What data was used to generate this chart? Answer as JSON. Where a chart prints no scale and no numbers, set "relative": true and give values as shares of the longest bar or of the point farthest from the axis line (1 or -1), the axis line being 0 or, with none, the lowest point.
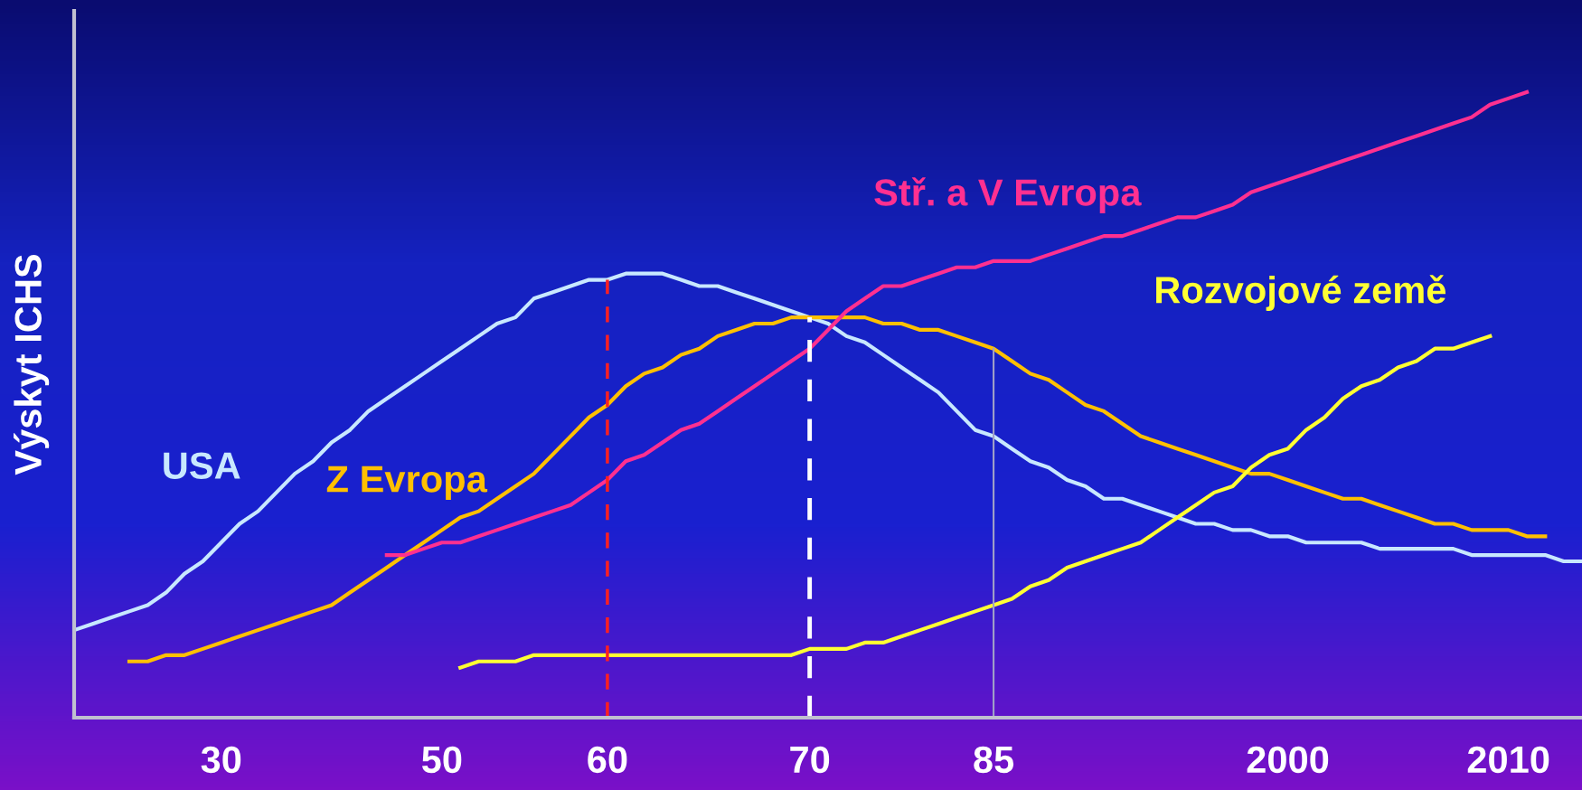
{
  "chart_data": {
    "type": "line",
    "relative": true,
    "ylabel": "Výskyt ICHS",
    "categories": [
      null,
      null,
      null,
      null,
      null,
      null,
      null,
      null,
      "30",
      null,
      null,
      null,
      null,
      null,
      null,
      null,
      null,
      null,
      null,
      null,
      "50",
      null,
      null,
      null,
      null,
      null,
      null,
      null,
      null,
      "60",
      null,
      null,
      null,
      null,
      null,
      null,
      null,
      null,
      null,
      null,
      "70",
      null,
      null,
      null,
      null,
      null,
      null,
      null,
      null,
      null,
      "85",
      null,
      null,
      null,
      null,
      null,
      null,
      null,
      null,
      null,
      null,
      null,
      null,
      null,
      null,
      null,
      "2000",
      null,
      null,
      null,
      null,
      null,
      null,
      null,
      null,
      null,
      null,
      null,
      "2010",
      null,
      null,
      null,
      null
    ],
    "grid": false,
    "legend": false,
    "marker": "none",
    "line_style": "solid",
    "series": [
      {
        "name": "USA",
        "color": "#c8e8ff",
        "values": [
          0.14,
          0.15,
          0.16,
          0.17,
          0.18,
          0.2,
          0.23,
          0.25,
          0.28,
          0.31,
          0.33,
          0.36,
          0.39,
          0.41,
          0.44,
          0.46,
          0.49,
          0.51,
          0.53,
          0.55,
          0.57,
          0.59,
          0.61,
          0.63,
          0.64,
          0.67,
          0.68,
          0.69,
          0.7,
          0.7,
          0.71,
          0.71,
          0.71,
          0.7,
          0.69,
          0.69,
          0.68,
          0.67,
          0.66,
          0.65,
          0.64,
          0.63,
          0.61,
          0.6,
          0.58,
          0.56,
          0.54,
          0.52,
          0.49,
          0.46,
          0.45,
          0.43,
          0.41,
          0.4,
          0.38,
          0.37,
          0.35,
          0.35,
          0.34,
          0.33,
          0.32,
          0.31,
          0.31,
          0.3,
          0.3,
          0.29,
          0.29,
          0.28,
          0.28,
          0.28,
          0.28,
          0.27,
          0.27,
          0.27,
          0.27,
          0.27,
          0.26,
          0.26,
          0.26,
          0.26,
          0.26,
          0.25,
          0.25
        ]
      },
      {
        "name": "Z Evropa",
        "color": "#ffc000",
        "values": [
          null,
          null,
          null,
          0.09,
          0.09,
          0.1,
          0.1,
          0.11,
          0.12,
          0.13,
          0.14,
          0.15,
          0.16,
          0.17,
          0.18,
          0.2,
          0.22,
          0.24,
          0.26,
          0.28,
          0.3,
          0.32,
          0.33,
          0.35,
          0.37,
          0.39,
          0.42,
          0.45,
          0.48,
          0.5,
          0.53,
          0.55,
          0.56,
          0.58,
          0.59,
          0.61,
          0.62,
          0.63,
          0.63,
          0.64,
          0.64,
          0.64,
          0.64,
          0.64,
          0.63,
          0.63,
          0.62,
          0.62,
          0.61,
          0.6,
          0.59,
          0.57,
          0.55,
          0.54,
          0.52,
          0.5,
          0.49,
          0.47,
          0.45,
          0.44,
          0.43,
          0.42,
          0.41,
          0.4,
          0.39,
          0.39,
          0.38,
          0.37,
          0.36,
          0.35,
          0.35,
          0.34,
          0.33,
          0.32,
          0.31,
          0.31,
          0.3,
          0.3,
          0.3,
          0.29,
          0.29,
          null,
          null
        ]
      },
      {
        "name": "Stř. a V Evropa",
        "color": "#ff3090",
        "values": [
          null,
          null,
          null,
          null,
          null,
          null,
          null,
          null,
          null,
          null,
          null,
          null,
          null,
          null,
          null,
          null,
          null,
          0.26,
          0.26,
          0.27,
          0.28,
          0.28,
          0.29,
          0.3,
          0.31,
          0.32,
          0.33,
          0.34,
          0.36,
          0.38,
          0.41,
          0.42,
          0.44,
          0.46,
          0.47,
          0.49,
          0.51,
          0.53,
          0.55,
          0.57,
          0.59,
          0.62,
          0.65,
          0.67,
          0.69,
          0.69,
          0.7,
          0.71,
          0.72,
          0.72,
          0.73,
          0.73,
          0.73,
          0.74,
          0.75,
          0.76,
          0.77,
          0.77,
          0.78,
          0.79,
          0.8,
          0.8,
          0.81,
          0.82,
          0.84,
          0.85,
          0.86,
          0.87,
          0.88,
          0.89,
          0.9,
          0.91,
          0.92,
          0.93,
          0.94,
          0.95,
          0.96,
          0.98,
          0.99,
          1,
          null,
          null,
          null
        ]
      },
      {
        "name": "Rozvojové země",
        "color": "#ffff33",
        "values": [
          null,
          null,
          null,
          null,
          null,
          null,
          null,
          null,
          null,
          null,
          null,
          null,
          null,
          null,
          null,
          null,
          null,
          null,
          null,
          null,
          null,
          0.08,
          0.09,
          0.09,
          0.09,
          0.1,
          0.1,
          0.1,
          0.1,
          0.1,
          0.1,
          0.1,
          0.1,
          0.1,
          0.1,
          0.1,
          0.1,
          0.1,
          0.1,
          0.1,
          0.11,
          0.11,
          0.11,
          0.12,
          0.12,
          0.13,
          0.14,
          0.15,
          0.16,
          0.17,
          0.18,
          0.19,
          0.21,
          0.22,
          0.24,
          0.25,
          0.26,
          0.27,
          0.28,
          0.3,
          0.32,
          0.34,
          0.36,
          0.37,
          0.4,
          0.42,
          0.43,
          0.46,
          0.48,
          0.51,
          0.53,
          0.54,
          0.56,
          0.57,
          0.59,
          0.59,
          0.6,
          0.61,
          null,
          null,
          null,
          null,
          null
        ]
      }
    ],
    "ref_lines": [
      {
        "axis": "x",
        "value": "60",
        "color": "#ff2020",
        "line_style": "dashed"
      },
      {
        "axis": "x",
        "value": "70",
        "color": "#ffffff",
        "line_style": "dashed"
      },
      {
        "axis": "x",
        "value": "85",
        "color": "#a0a0c8",
        "line_style": "solid"
      }
    ]
  }
}
